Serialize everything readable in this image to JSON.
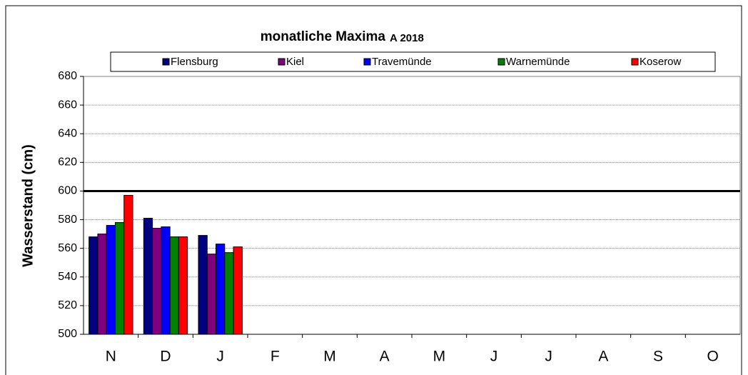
{
  "chart_data": {
    "type": "bar",
    "title": "monatliche Maxima",
    "subtitle": "A 2018",
    "y_label": "Wasserstand (cm)",
    "categories": [
      "N",
      "D",
      "J",
      "F",
      "M",
      "A",
      "M",
      "J",
      "J",
      "A",
      "S",
      "O"
    ],
    "series": [
      {
        "name": "Flensburg",
        "color": "#000080",
        "values": [
          568,
          581,
          569,
          null,
          null,
          null,
          null,
          null,
          null,
          null,
          null,
          null
        ]
      },
      {
        "name": "Kiel",
        "color": "#800080",
        "values": [
          570,
          574,
          556,
          null,
          null,
          null,
          null,
          null,
          null,
          null,
          null,
          null
        ]
      },
      {
        "name": "Travemünde",
        "color": "#0000ff",
        "values": [
          576,
          575,
          563,
          null,
          null,
          null,
          null,
          null,
          null,
          null,
          null,
          null
        ]
      },
      {
        "name": "Warnemünde",
        "color": "#008000",
        "values": [
          578,
          568,
          557,
          null,
          null,
          null,
          null,
          null,
          null,
          null,
          null,
          null
        ]
      },
      {
        "name": "Koserow",
        "color": "#ff0000",
        "values": [
          597,
          568,
          561,
          null,
          null,
          null,
          null,
          null,
          null,
          null,
          null,
          null
        ]
      }
    ],
    "reference_line": 600,
    "ylim": [
      500,
      680
    ],
    "yticks": [
      500,
      520,
      540,
      560,
      580,
      600,
      620,
      640,
      660,
      680
    ],
    "grid": true,
    "legend": "top"
  }
}
